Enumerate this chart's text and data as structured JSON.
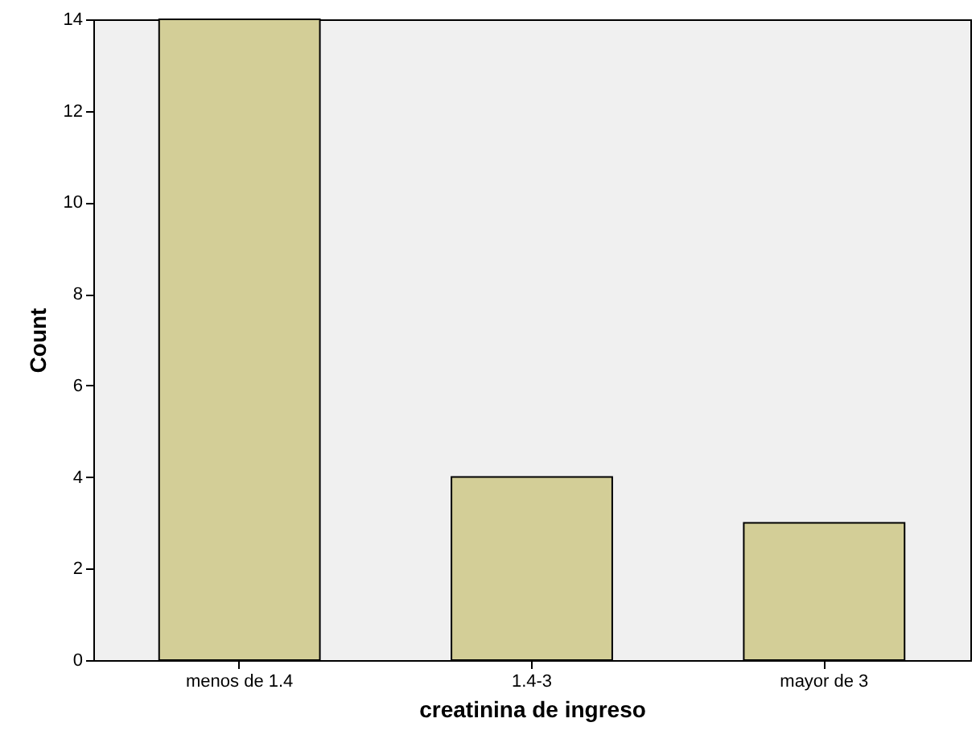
{
  "chart_data": {
    "type": "bar",
    "xlabel": "creatinina de ingreso",
    "ylabel": "Count",
    "categories": [
      "menos de 1.4",
      "1.4-3",
      "mayor de 3"
    ],
    "values": [
      14,
      4,
      3
    ],
    "color": "#d3ce97",
    "ylim": [
      0,
      14
    ],
    "yticks": [
      0,
      2,
      4,
      6,
      8,
      10,
      12,
      14
    ],
    "grid": false
  }
}
